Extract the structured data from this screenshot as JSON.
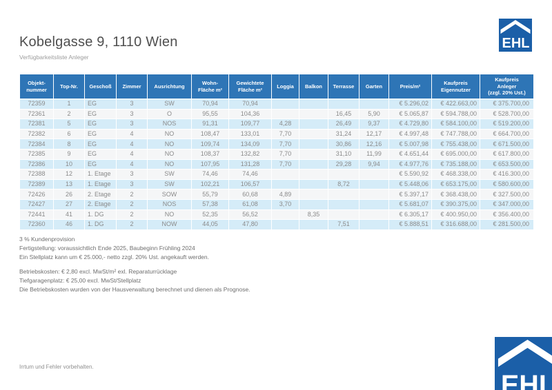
{
  "page": {
    "title": "Kobelgasse 9, 1110 Wien",
    "subtitle": "Verfügbarkeitsliste Anleger",
    "disclaimer": "Irrtum und Fehler vorbehalten."
  },
  "logo": {
    "text": "EHL"
  },
  "colors": {
    "header_blue": "#2e75b6",
    "row_blue": "#d5ecf8",
    "row_gray": "#f5f6f7",
    "logo_blue": "#1b5fa8",
    "text_gray": "#8a8a8a"
  },
  "table": {
    "columns": [
      [
        "Objekt-",
        "nummer"
      ],
      [
        "Top-Nr."
      ],
      [
        "Geschoß"
      ],
      [
        "Zimmer"
      ],
      [
        "Ausrichtung"
      ],
      [
        "Wohn-",
        "Fläche m²"
      ],
      [
        "Gewichtete",
        "Fläche m²"
      ],
      [
        "Loggia"
      ],
      [
        "Balkon"
      ],
      [
        "Terrasse"
      ],
      [
        "Garten"
      ],
      [
        "Preis/m²"
      ],
      [
        "Kaufpreis",
        "Eigennutzer"
      ],
      [
        "Kaufpreis",
        "Anleger",
        "(zzgl. 20% Ust.)"
      ]
    ],
    "rows": [
      [
        "72359",
        "1",
        "EG",
        "3",
        "SW",
        "70,94",
        "70,94",
        "",
        "",
        "",
        "",
        "€ 5.296,02",
        "€ 422.663,00",
        "€ 375.700,00"
      ],
      [
        "72361",
        "2",
        "EG",
        "3",
        "O",
        "95,55",
        "104,36",
        "",
        "",
        "16,45",
        "5,90",
        "€ 5.065,87",
        "€ 594.788,00",
        "€ 528.700,00"
      ],
      [
        "72381",
        "5",
        "EG",
        "3",
        "NOS",
        "91,31",
        "109,77",
        "4,28",
        "",
        "26,49",
        "9,37",
        "€ 4.729,80",
        "€ 584.100,00",
        "€ 519.200,00"
      ],
      [
        "72382",
        "6",
        "EG",
        "4",
        "NO",
        "108,47",
        "133,01",
        "7,70",
        "",
        "31,24",
        "12,17",
        "€ 4.997,48",
        "€ 747.788,00",
        "€ 664.700,00"
      ],
      [
        "72384",
        "8",
        "EG",
        "4",
        "NO",
        "109,74",
        "134,09",
        "7,70",
        "",
        "30,86",
        "12,16",
        "€ 5.007,98",
        "€ 755.438,00",
        "€ 671.500,00"
      ],
      [
        "72385",
        "9",
        "EG",
        "4",
        "NO",
        "108,37",
        "132,82",
        "7,70",
        "",
        "31,10",
        "11,99",
        "€ 4.651,44",
        "€ 695.000,00",
        "€ 617.800,00"
      ],
      [
        "72386",
        "10",
        "EG",
        "4",
        "NO",
        "107,95",
        "131,28",
        "7,70",
        "",
        "29,28",
        "9,94",
        "€ 4.977,76",
        "€ 735.188,00",
        "€ 653.500,00"
      ],
      [
        "72388",
        "12",
        "1. Etage",
        "3",
        "SW",
        "74,46",
        "74,46",
        "",
        "",
        "",
        "",
        "€ 5.590,92",
        "€ 468.338,00",
        "€ 416.300,00"
      ],
      [
        "72389",
        "13",
        "1. Etage",
        "3",
        "SW",
        "102,21",
        "106,57",
        "",
        "",
        "8,72",
        "",
        "€ 5.448,06",
        "€ 653.175,00",
        "€ 580.600,00"
      ],
      [
        "72426",
        "26",
        "2. Etage",
        "2",
        "SOW",
        "55,79",
        "60,68",
        "4,89",
        "",
        "",
        "",
        "€ 5.397,17",
        "€ 368.438,00",
        "€ 327.500,00"
      ],
      [
        "72427",
        "27",
        "2. Etage",
        "2",
        "NOS",
        "57,38",
        "61,08",
        "3,70",
        "",
        "",
        "",
        "€ 5.681,07",
        "€ 390.375,00",
        "€ 347.000,00"
      ],
      [
        "72441",
        "41",
        "1. DG",
        "2",
        "NO",
        "52,35",
        "56,52",
        "",
        "8,35",
        "",
        "",
        "€ 6.305,17",
        "€ 400.950,00",
        "€ 356.400,00"
      ],
      [
        "72360",
        "46",
        "1. DG",
        "2",
        "NOW",
        "44,05",
        "47,80",
        "",
        "",
        "7,51",
        "",
        "€ 5.888,51",
        "€ 316.688,00",
        "€ 281.500,00"
      ]
    ]
  },
  "notes": {
    "block1": [
      "3 % Kundenprovision",
      "Fertigstellung: voraussichtlich Ende 2025, Baubeginn Frühling 2024",
      "Ein Stellplatz kann um € 25.000,- netto zzgl. 20% Ust. angekauft werden."
    ],
    "block2": [
      "Betriebskosten: € 2,80 excl. MwSt/m² exl. Reparaturrücklage",
      "Tiefgaragenplatz: € 25,00 excl. MwSt/Stellplatz",
      "Die Betriebskosten wurden von der Hausverwaltung berechnet und dienen als Prognose."
    ]
  }
}
